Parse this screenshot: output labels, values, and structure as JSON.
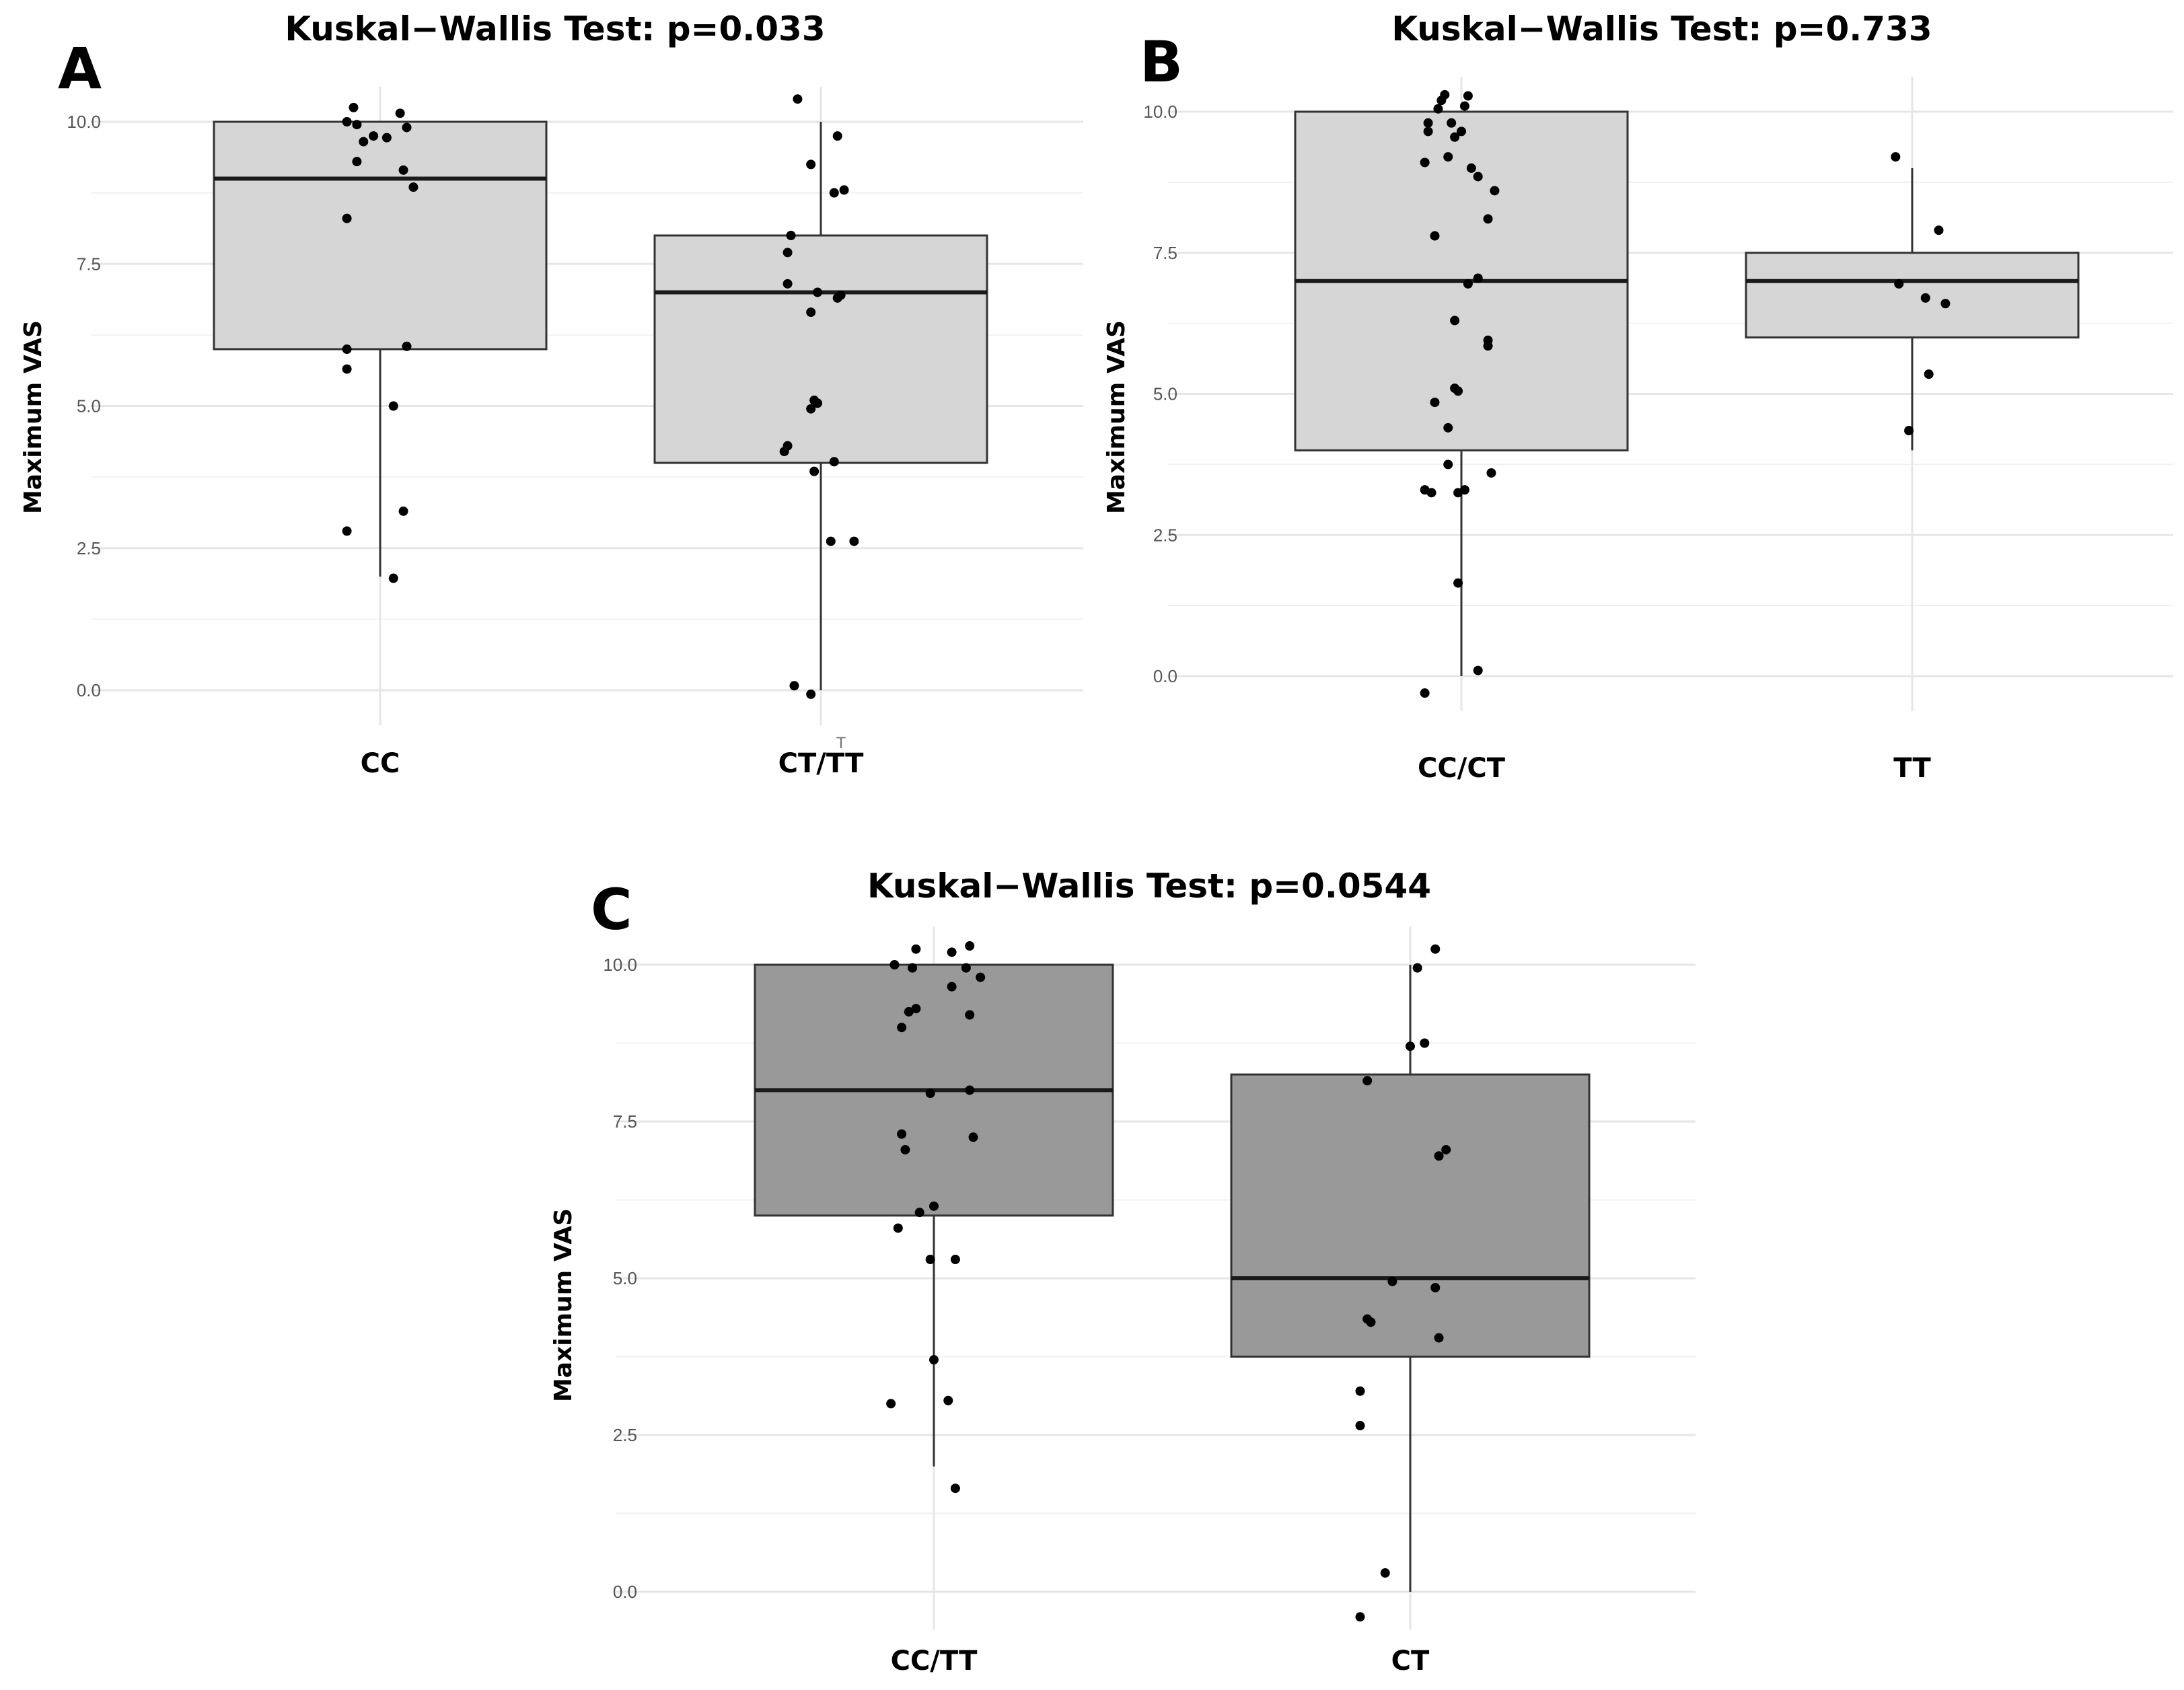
{
  "chart_data": [
    {
      "type": "boxplot",
      "panel_label": "A",
      "title": "Kuskal−Wallis Test: p=0.033",
      "ylabel": "Maximum VAS",
      "xlabel": "",
      "ylim": [
        -0.5,
        10.5
      ],
      "yticks": [
        0,
        2.5,
        5,
        7.5,
        10
      ],
      "ytick_labels": [
        "0.0",
        "2.5",
        "5.0",
        "7.5",
        "10.0"
      ],
      "box_fill": "#d6d6d6",
      "categories": [
        "CC",
        "CT/TT"
      ],
      "groups": [
        {
          "name": "CC",
          "whisker_low": 2.0,
          "q1": 6.0,
          "median": 9.0,
          "q3": 10.0,
          "whisker_high": 10.0,
          "points": [
            [
              -0.08,
              10.25
            ],
            [
              0.06,
              10.15
            ],
            [
              -0.1,
              10.0
            ],
            [
              -0.07,
              9.95
            ],
            [
              -0.02,
              9.75
            ],
            [
              0.02,
              9.72
            ],
            [
              0.08,
              9.9
            ],
            [
              -0.05,
              9.65
            ],
            [
              -0.07,
              9.3
            ],
            [
              0.07,
              9.15
            ],
            [
              0.1,
              8.85
            ],
            [
              -0.1,
              8.3
            ],
            [
              -0.1,
              6.0
            ],
            [
              0.08,
              6.05
            ],
            [
              -0.1,
              5.65
            ],
            [
              0.04,
              5.0
            ],
            [
              0.07,
              3.15
            ],
            [
              -0.1,
              2.8
            ],
            [
              0.04,
              1.97
            ]
          ]
        },
        {
          "name": "CT/TT",
          "whisker_low": 0.0,
          "q1": 4.0,
          "median": 7.0,
          "q3": 8.0,
          "whisker_high": 10.0,
          "points": [
            [
              -0.07,
              10.4
            ],
            [
              0.05,
              9.75
            ],
            [
              -0.03,
              9.25
            ],
            [
              0.04,
              8.75
            ],
            [
              0.07,
              8.8
            ],
            [
              -0.09,
              8.0
            ],
            [
              -0.1,
              7.7
            ],
            [
              -0.1,
              7.15
            ],
            [
              -0.01,
              7.0
            ],
            [
              0.06,
              6.95
            ],
            [
              0.05,
              6.9
            ],
            [
              -0.03,
              6.65
            ],
            [
              -0.02,
              5.1
            ],
            [
              -0.01,
              5.05
            ],
            [
              -0.03,
              4.95
            ],
            [
              -0.1,
              4.3
            ],
            [
              -0.11,
              4.2
            ],
            [
              0.04,
              4.02
            ],
            [
              -0.02,
              3.85
            ],
            [
              0.03,
              2.62
            ],
            [
              0.1,
              2.62
            ],
            [
              -0.08,
              0.08
            ],
            [
              -0.03,
              -0.07
            ]
          ]
        }
      ],
      "annotations": [
        "T"
      ]
    },
    {
      "type": "boxplot",
      "panel_label": "B",
      "title": "Kuskal−Wallis Test: p=0.733",
      "ylabel": "Maximum VAS",
      "xlabel": "",
      "ylim": [
        -0.5,
        10.5
      ],
      "yticks": [
        0,
        2.5,
        5,
        7.5,
        10
      ],
      "ytick_labels": [
        "0.0",
        "2.5",
        "5.0",
        "7.5",
        "10.0"
      ],
      "box_fill": "#d6d6d6",
      "categories": [
        "CC/CT",
        "TT"
      ],
      "groups": [
        {
          "name": "CC/CT",
          "whisker_low": 0.0,
          "q1": 4.0,
          "median": 7.0,
          "q3": 10.0,
          "whisker_high": 10.0,
          "points": [
            [
              -0.05,
              10.3
            ],
            [
              0.02,
              10.28
            ],
            [
              -0.06,
              10.2
            ],
            [
              0.01,
              10.1
            ],
            [
              -0.07,
              10.05
            ],
            [
              -0.1,
              9.8
            ],
            [
              -0.03,
              9.8
            ],
            [
              -0.1,
              9.65
            ],
            [
              0.0,
              9.65
            ],
            [
              -0.02,
              9.55
            ],
            [
              -0.04,
              9.2
            ],
            [
              -0.11,
              9.1
            ],
            [
              0.03,
              9.0
            ],
            [
              0.05,
              8.85
            ],
            [
              0.1,
              8.6
            ],
            [
              0.08,
              8.1
            ],
            [
              -0.08,
              7.8
            ],
            [
              0.05,
              7.05
            ],
            [
              0.02,
              6.95
            ],
            [
              -0.02,
              6.3
            ],
            [
              0.08,
              5.95
            ],
            [
              0.08,
              5.85
            ],
            [
              -0.02,
              5.1
            ],
            [
              -0.01,
              5.05
            ],
            [
              -0.08,
              4.85
            ],
            [
              -0.04,
              4.4
            ],
            [
              -0.04,
              3.75
            ],
            [
              0.09,
              3.6
            ],
            [
              -0.11,
              3.3
            ],
            [
              -0.09,
              3.25
            ],
            [
              0.01,
              3.3
            ],
            [
              -0.01,
              3.25
            ],
            [
              -0.01,
              1.65
            ],
            [
              0.05,
              0.1
            ],
            [
              -0.11,
              -0.3
            ]
          ]
        },
        {
          "name": "TT",
          "whisker_low": 4.0,
          "q1": 6.0,
          "median": 7.0,
          "q3": 7.5,
          "whisker_high": 9.0,
          "points": [
            [
              -0.05,
              9.2
            ],
            [
              0.08,
              7.9
            ],
            [
              -0.04,
              6.95
            ],
            [
              0.04,
              6.7
            ],
            [
              0.1,
              6.6
            ],
            [
              0.05,
              5.35
            ],
            [
              -0.01,
              4.35
            ]
          ]
        }
      ]
    },
    {
      "type": "boxplot",
      "panel_label": "C",
      "title": "Kuskal−Wallis Test: p=0.0544",
      "ylabel": "Maximum VAS",
      "xlabel": "",
      "ylim": [
        -0.5,
        10.5
      ],
      "yticks": [
        0,
        2.5,
        5,
        7.5,
        10
      ],
      "ytick_labels": [
        "0.0",
        "2.5",
        "5.0",
        "7.5",
        "10.0"
      ],
      "box_fill": "#999999",
      "categories": [
        "CC/TT",
        "CT"
      ],
      "groups": [
        {
          "name": "CC/TT",
          "whisker_low": 2.0,
          "q1": 6.0,
          "median": 8.0,
          "q3": 10.0,
          "whisker_high": 10.0,
          "points": [
            [
              0.1,
              10.3
            ],
            [
              -0.05,
              10.25
            ],
            [
              0.05,
              10.2
            ],
            [
              -0.11,
              10.0
            ],
            [
              -0.06,
              9.95
            ],
            [
              0.09,
              9.95
            ],
            [
              0.13,
              9.8
            ],
            [
              0.05,
              9.65
            ],
            [
              -0.05,
              9.3
            ],
            [
              -0.07,
              9.25
            ],
            [
              0.1,
              9.2
            ],
            [
              -0.09,
              9.0
            ],
            [
              -0.01,
              7.95
            ],
            [
              0.1,
              8.0
            ],
            [
              -0.09,
              7.3
            ],
            [
              -0.08,
              7.05
            ],
            [
              0.11,
              7.25
            ],
            [
              0.0,
              6.15
            ],
            [
              -0.04,
              6.05
            ],
            [
              -0.1,
              5.8
            ],
            [
              -0.01,
              5.3
            ],
            [
              0.06,
              5.3
            ],
            [
              0.0,
              3.7
            ],
            [
              -0.12,
              3.0
            ],
            [
              0.04,
              3.05
            ],
            [
              0.06,
              1.65
            ]
          ]
        },
        {
          "name": "CT",
          "whisker_low": 0.0,
          "q1": 3.75,
          "median": 5.0,
          "q3": 8.25,
          "whisker_high": 10.0,
          "points": [
            [
              0.07,
              10.25
            ],
            [
              0.02,
              9.95
            ],
            [
              0.04,
              8.75
            ],
            [
              0.0,
              8.7
            ],
            [
              -0.12,
              8.15
            ],
            [
              0.1,
              7.05
            ],
            [
              0.08,
              6.95
            ],
            [
              -0.05,
              4.95
            ],
            [
              0.07,
              4.85
            ],
            [
              -0.12,
              4.35
            ],
            [
              -0.11,
              4.3
            ],
            [
              0.08,
              4.05
            ],
            [
              -0.14,
              3.2
            ],
            [
              -0.14,
              2.65
            ],
            [
              -0.07,
              0.3
            ],
            [
              -0.14,
              -0.4
            ]
          ]
        }
      ]
    }
  ]
}
